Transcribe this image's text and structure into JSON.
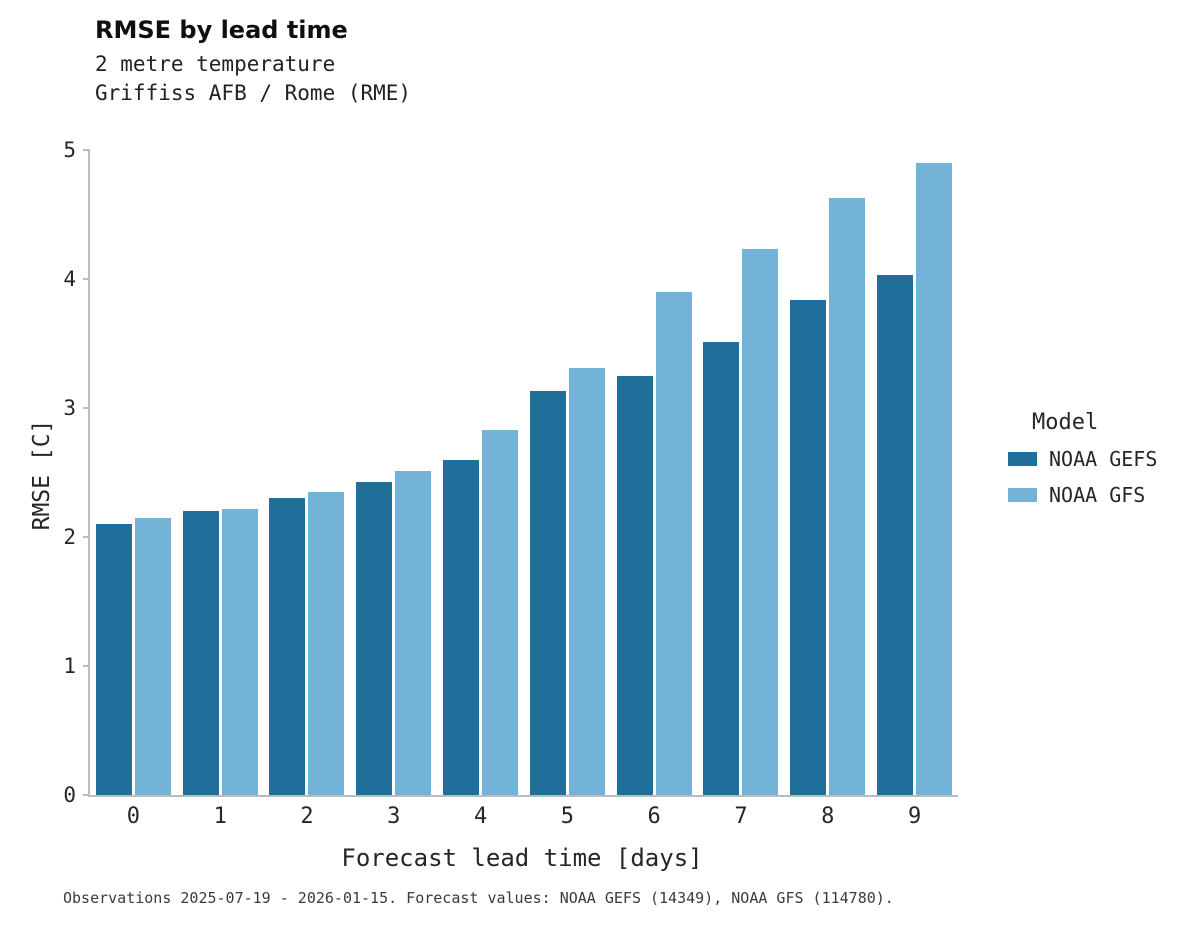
{
  "caption": "Observations 2025-07-19 - 2026-01-15. Forecast values: NOAA GEFS (14349), NOAA GFS (114780).",
  "chart_data": {
    "type": "bar",
    "title": "RMSE by lead time",
    "subtitle": "2 metre temperature",
    "subtitle2": "Griffiss AFB / Rome (RME)",
    "xlabel": "Forecast lead time [days]",
    "ylabel": "RMSE [C]",
    "legend_title": "Model",
    "legend_position": "right",
    "grid": false,
    "categories": [
      "0",
      "1",
      "2",
      "3",
      "4",
      "5",
      "6",
      "7",
      "8",
      "9"
    ],
    "ylim": [
      0,
      5
    ],
    "ytick_step": 1,
    "series": [
      {
        "name": "NOAA GEFS",
        "color": "#1f6f9a",
        "values": [
          2.1,
          2.2,
          2.3,
          2.43,
          2.6,
          3.13,
          3.25,
          3.51,
          3.84,
          4.03
        ]
      },
      {
        "name": "NOAA GFS",
        "color": "#72b2d7",
        "values": [
          2.15,
          2.22,
          2.35,
          2.51,
          2.83,
          3.31,
          3.9,
          4.23,
          4.63,
          4.9
        ]
      }
    ]
  }
}
